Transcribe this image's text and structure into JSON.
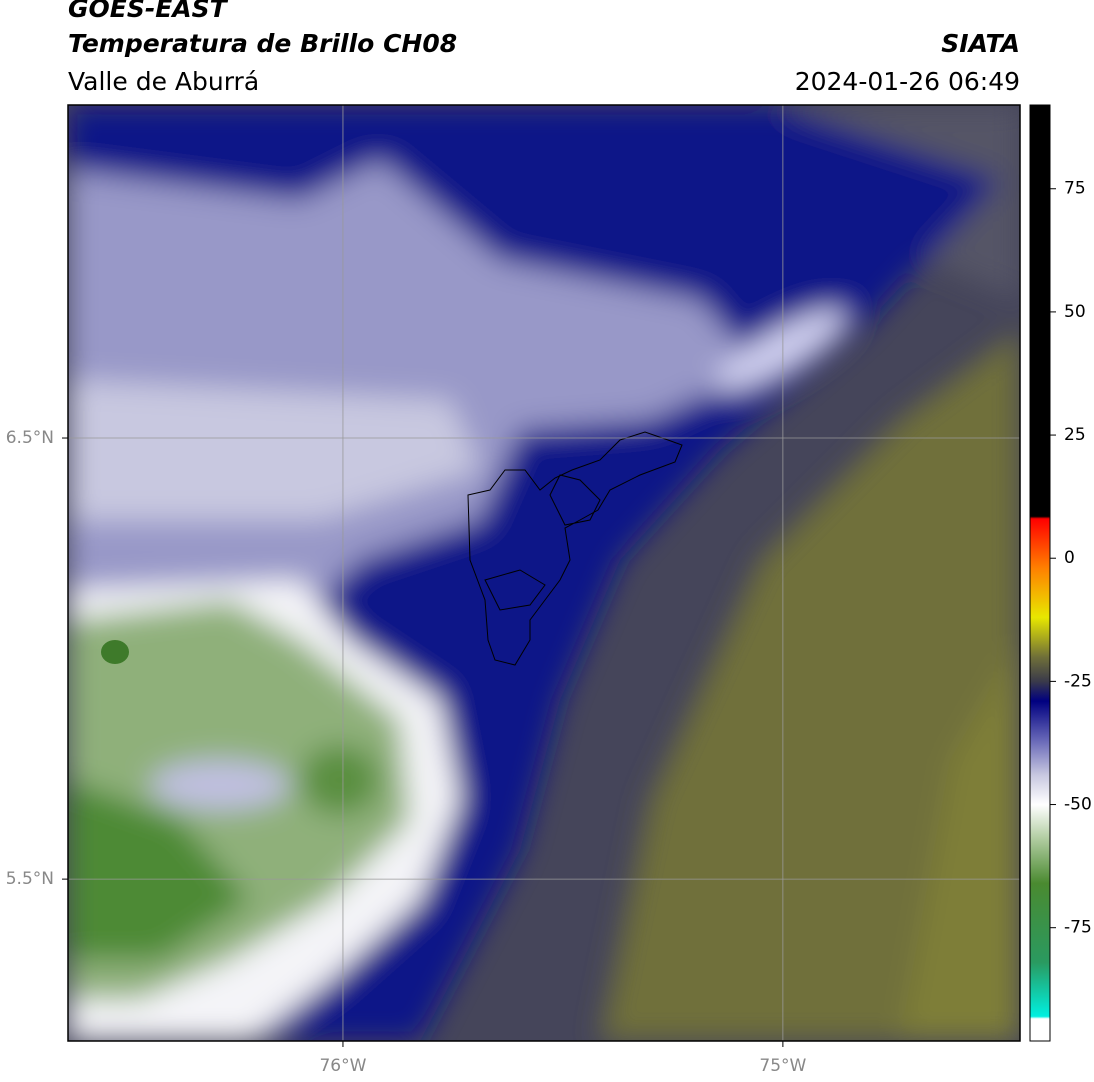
{
  "header": {
    "title": "GOES-EAST",
    "subtitle": "Temperatura de Brillo CH08",
    "region": "Valle de Aburrá",
    "source": "SIATA",
    "datetime": "2024-01-26 06:49"
  },
  "map": {
    "lonlim": [
      -76.625,
      -74.461
    ],
    "latlim": [
      5.133,
      7.255
    ],
    "lonticks": [
      {
        "value": -76,
        "label": "76°W"
      },
      {
        "value": -75,
        "label": "75°W"
      }
    ],
    "latticks": [
      {
        "value": 6.5,
        "label": "6.5°N"
      },
      {
        "value": 5.5,
        "label": "5.5°N"
      }
    ]
  },
  "colorbar": {
    "lim": [
      -98,
      92
    ],
    "ticks": [
      75,
      50,
      25,
      0,
      -25,
      -50,
      -75
    ],
    "colormap": [
      {
        "value": -98,
        "color": "#ffffff"
      },
      {
        "value": -93.5,
        "color": "#ffffff"
      },
      {
        "value": -93,
        "color": "#00f0e0"
      },
      {
        "value": -82,
        "color": "#2a9a60"
      },
      {
        "value": -66,
        "color": "#4a8a30"
      },
      {
        "value": -57,
        "color": "#b0cca0"
      },
      {
        "value": -50,
        "color": "#ffffff"
      },
      {
        "value": -44,
        "color": "#c8c8e0"
      },
      {
        "value": -37,
        "color": "#6868b8"
      },
      {
        "value": -29,
        "color": "#000080"
      },
      {
        "value": -25,
        "color": "#3a3a4a"
      },
      {
        "value": -20,
        "color": "#707038"
      },
      {
        "value": -12,
        "color": "#e8e800"
      },
      {
        "value": -2,
        "color": "#ff8000"
      },
      {
        "value": 8,
        "color": "#ff0000"
      },
      {
        "value": 8.5,
        "color": "#000000"
      },
      {
        "value": 92,
        "color": "#000000"
      }
    ]
  }
}
